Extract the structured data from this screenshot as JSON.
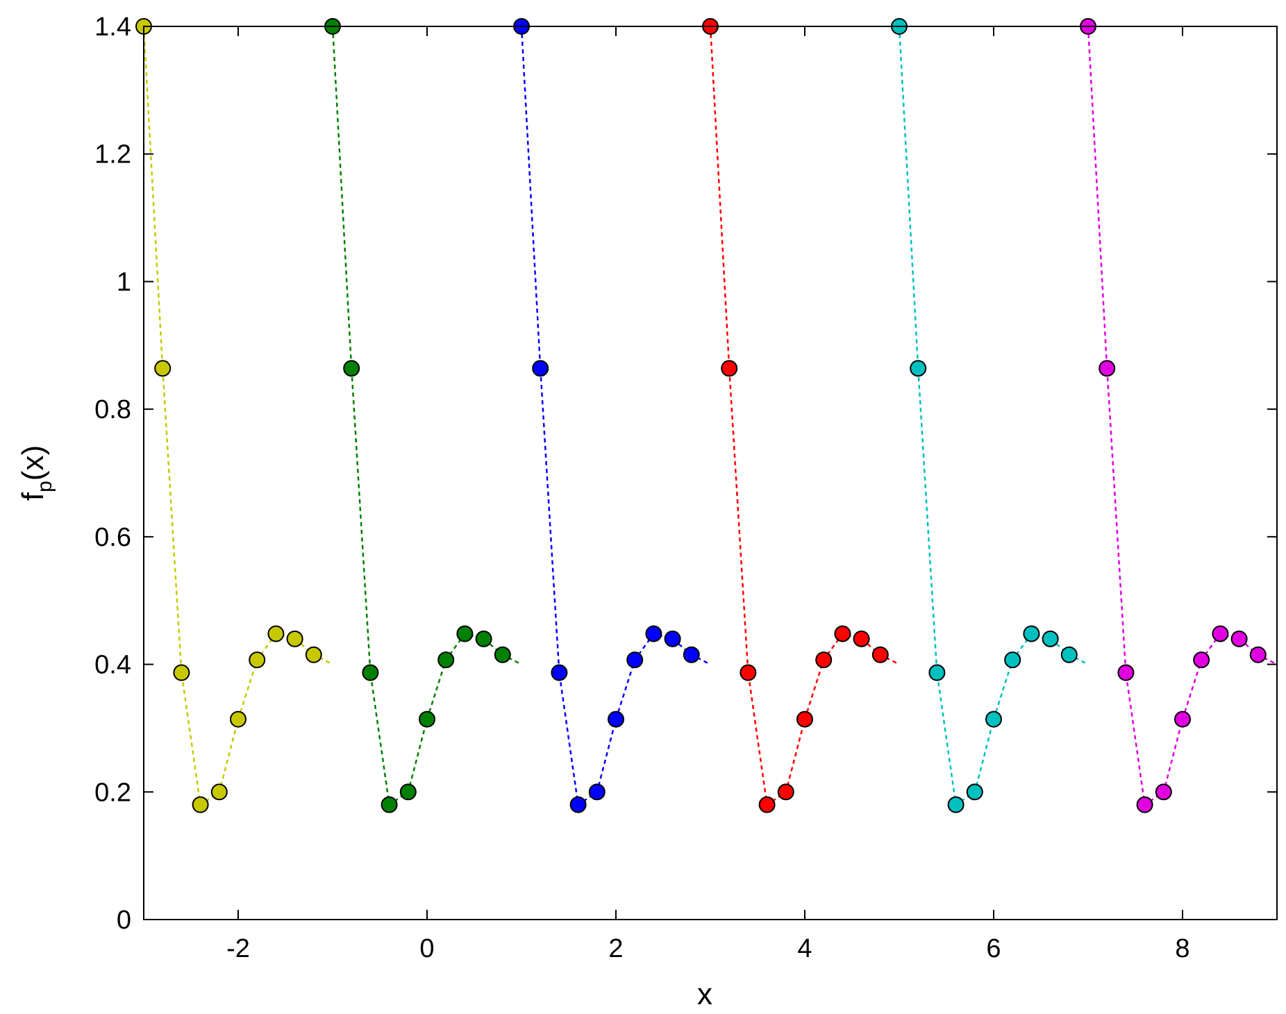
{
  "chart_data": {
    "type": "scatter",
    "title": "",
    "xlabel": "x",
    "ylabel": {
      "main": "f",
      "sub": "p",
      "suffix": "(x)"
    },
    "xlim": [
      -3,
      9
    ],
    "ylim": [
      0,
      1.4
    ],
    "xticks": [
      "-2",
      "0",
      "2",
      "4",
      "6",
      "8"
    ],
    "xtick_values": [
      -2,
      0,
      2,
      4,
      6,
      8
    ],
    "yticks": [
      "0",
      "0.2",
      "0.4",
      "0.6",
      "0.8",
      "1",
      "1.2",
      "1.4"
    ],
    "ytick_values": [
      0,
      0.2,
      0.4,
      0.6,
      0.8,
      1.0,
      1.2,
      1.4
    ],
    "grid": false,
    "legend": "none",
    "series": [
      {
        "color": "#c8c800",
        "x": [
          -3.0,
          -2.8,
          -2.6,
          -2.4,
          -2.2,
          -2.0,
          -1.8,
          -1.6,
          -1.4,
          -1.2
        ],
        "y": [
          1.4,
          0.864,
          0.387,
          0.18,
          0.2,
          0.314,
          0.407,
          0.448,
          0.44,
          0.415
        ],
        "line_end": [
          -1.0,
          0.4
        ]
      },
      {
        "color": "#008000",
        "x": [
          -1.0,
          -0.8,
          -0.6,
          -0.4,
          -0.2,
          0.0,
          0.2,
          0.4,
          0.6,
          0.8
        ],
        "y": [
          1.4,
          0.864,
          0.387,
          0.18,
          0.2,
          0.314,
          0.407,
          0.448,
          0.44,
          0.415
        ],
        "line_end": [
          1.0,
          0.4
        ]
      },
      {
        "color": "#0000ff",
        "x": [
          1.0,
          1.2,
          1.4,
          1.6,
          1.8,
          2.0,
          2.2,
          2.4,
          2.6,
          2.8
        ],
        "y": [
          1.4,
          0.864,
          0.387,
          0.18,
          0.2,
          0.314,
          0.407,
          0.448,
          0.44,
          0.415
        ],
        "line_end": [
          3.0,
          0.4
        ]
      },
      {
        "color": "#ff0000",
        "x": [
          3.0,
          3.2,
          3.4,
          3.6,
          3.8,
          4.0,
          4.2,
          4.4,
          4.6,
          4.8
        ],
        "y": [
          1.4,
          0.864,
          0.387,
          0.18,
          0.2,
          0.314,
          0.407,
          0.448,
          0.44,
          0.415
        ],
        "line_end": [
          5.0,
          0.4
        ]
      },
      {
        "color": "#00c0c0",
        "x": [
          5.0,
          5.2,
          5.4,
          5.6,
          5.8,
          6.0,
          6.2,
          6.4,
          6.6,
          6.8
        ],
        "y": [
          1.4,
          0.864,
          0.387,
          0.18,
          0.2,
          0.314,
          0.407,
          0.448,
          0.44,
          0.415
        ],
        "line_end": [
          7.0,
          0.4
        ]
      },
      {
        "color": "#e000e0",
        "x": [
          7.0,
          7.2,
          7.4,
          7.6,
          7.8,
          8.0,
          8.2,
          8.4,
          8.6,
          8.8
        ],
        "y": [
          1.4,
          0.864,
          0.387,
          0.18,
          0.2,
          0.314,
          0.407,
          0.448,
          0.44,
          0.415
        ],
        "line_end": [
          9.0,
          0.4
        ]
      }
    ]
  }
}
